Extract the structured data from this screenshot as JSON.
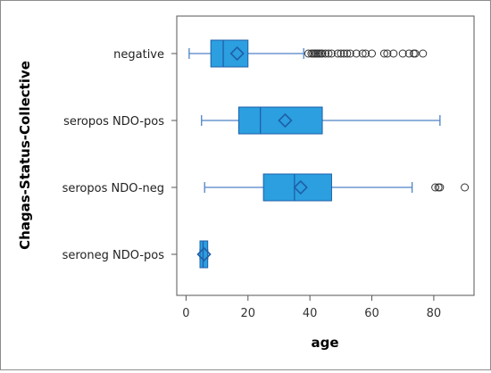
{
  "chart_data": {
    "type": "boxplot",
    "orientation": "horizontal",
    "xlabel": "age",
    "ylabel": "Chagas-Status-Collective",
    "xlim": [
      -3,
      93
    ],
    "xticks": [
      0,
      20,
      40,
      60,
      80
    ],
    "grid": false,
    "colors": {
      "box_fill": "#2b9fe0",
      "box_edge": "#1f5fa8",
      "whisker": "#4d82c8",
      "outlier": "#333333",
      "axis": "#555555"
    },
    "categories": [
      "negative",
      "seropos NDO-pos",
      "seropos NDO-neg",
      "seroneg NDO-pos"
    ],
    "boxes": [
      {
        "label": "negative",
        "min": 1,
        "q1": 8,
        "median": 12,
        "q3": 20,
        "max": 38,
        "mean": 16.5,
        "outliers": [
          39.5,
          40.5,
          41,
          41.5,
          42,
          42.5,
          43,
          43.5,
          44,
          45,
          46,
          47,
          49,
          50,
          51,
          52,
          53,
          55,
          57,
          58,
          60,
          64,
          65,
          67,
          70,
          72,
          73.5,
          74,
          76.5
        ]
      },
      {
        "label": "seropos NDO-pos",
        "min": 5,
        "q1": 17,
        "median": 24,
        "q3": 44,
        "max": 82,
        "mean": 32,
        "outliers": []
      },
      {
        "label": "seropos NDO-neg",
        "min": 6,
        "q1": 25,
        "median": 35,
        "q3": 47,
        "max": 73,
        "mean": 37,
        "outliers": [
          80.5,
          81.5,
          82,
          90
        ]
      },
      {
        "label": "seroneg NDO-pos",
        "min": 4.5,
        "q1": 4.5,
        "median": 5.5,
        "q3": 7,
        "max": 7,
        "mean": 5.8,
        "outliers": []
      }
    ]
  }
}
